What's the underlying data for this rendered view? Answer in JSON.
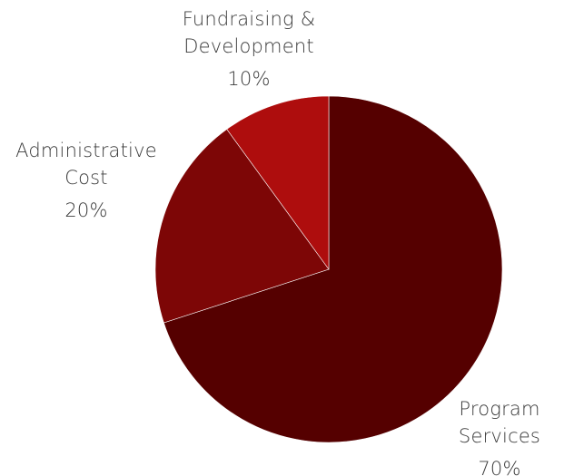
{
  "chart_data": {
    "type": "pie",
    "start_angle_deg": 0,
    "direction": "clockwise",
    "slices": [
      {
        "label_lines": [
          "Program",
          "Services"
        ],
        "value": 70,
        "percent_label": "70%",
        "color": "#550000"
      },
      {
        "label_lines": [
          "Administrative",
          "Cost"
        ],
        "value": 20,
        "percent_label": "20%",
        "color": "#7d0606"
      },
      {
        "label_lines": [
          "Fundraising &",
          "Development"
        ],
        "value": 10,
        "percent_label": "10%",
        "color": "#ae0d0d"
      }
    ]
  }
}
